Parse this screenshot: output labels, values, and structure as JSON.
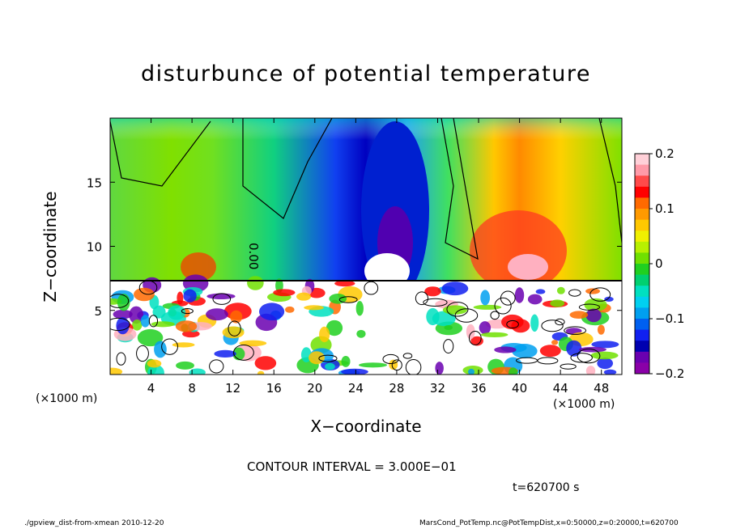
{
  "chart_data": {
    "type": "heatmap",
    "title": "disturbunce of potential temperature",
    "xlabel": "X−coordinate",
    "ylabel": "Z−coordinate",
    "xunit": "(×1000 m)",
    "x_ticks": [
      "4",
      "8",
      "12",
      "16",
      "20",
      "24",
      "28",
      "32",
      "36",
      "40",
      "44",
      "48"
    ],
    "x_tick_values": [
      4,
      8,
      12,
      16,
      20,
      24,
      28,
      32,
      36,
      40,
      44,
      48
    ],
    "y_ticks": [
      "5",
      "10",
      "15"
    ],
    "y_tick_values": [
      5,
      10,
      15
    ],
    "xlim": [
      0,
      50
    ],
    "ylim": [
      0,
      20
    ],
    "colorbar": {
      "ticks": [
        "0.2",
        "0.1",
        "0",
        "−0.1",
        "−0.2"
      ],
      "tick_values": [
        0.2,
        0.1,
        0,
        -0.1,
        -0.2
      ],
      "range": [
        -0.2,
        0.2
      ],
      "colors": [
        "#ffd0d8",
        "#ff9aa8",
        "#ff4a4a",
        "#ff0000",
        "#ff6a00",
        "#ff9a00",
        "#ffc800",
        "#f0f000",
        "#b8f000",
        "#70e000",
        "#20d020",
        "#00d070",
        "#00e0c0",
        "#00d0f0",
        "#00a0f0",
        "#0060f0",
        "#1020f0",
        "#0000b0",
        "#6a00b0",
        "#8a00a8"
      ],
      "contour_label": "0.00"
    },
    "contour_interval_text": "CONTOUR INTERVAL = 3.000E−01"
  },
  "time_text": "t=620700 s",
  "footer": {
    "left": "./gpview_dist-from-xmean  2010-12-20",
    "right": "MarsCond_PotTemp.nc@PotTempDist,x=0:50000,z=0:20000,t=620700"
  }
}
